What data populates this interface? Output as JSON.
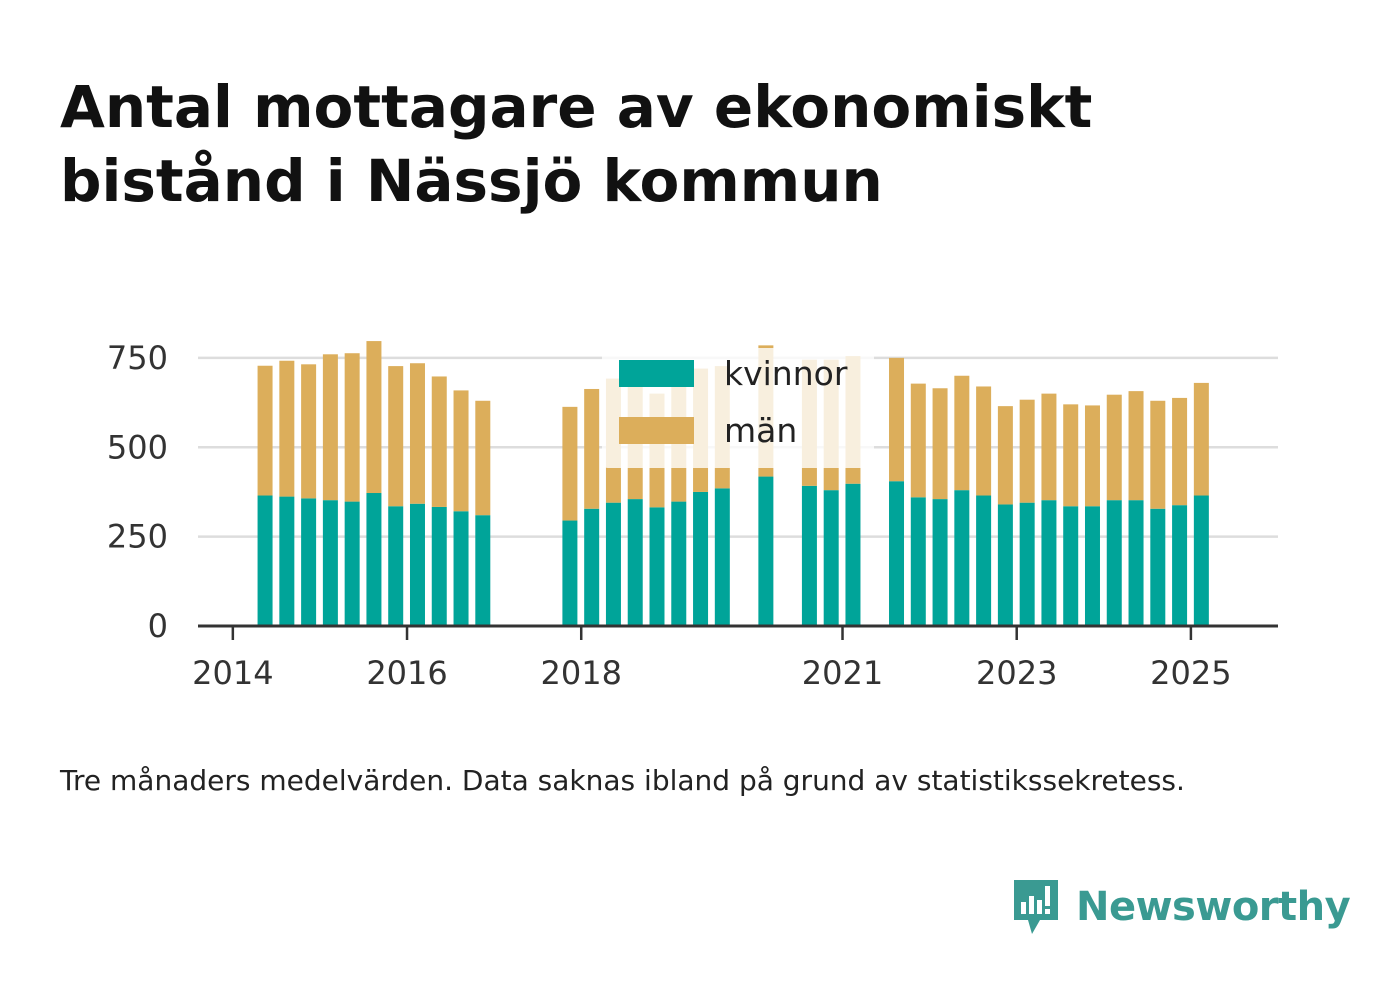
{
  "title": "Antal mottagare av ekonomiskt bistånd i Nässjö kommun",
  "note": "Tre månaders medelvärden. Data saknas ibland på grund av statistikssekretess.",
  "brand": "Newsworthy",
  "colors": {
    "kvinnor": "#00a499",
    "man": "#dcae5b",
    "grid": "#dddddd",
    "axis": "#333333"
  },
  "chart_data": {
    "type": "bar",
    "stacked": true,
    "yticks": [
      0,
      250,
      500,
      750
    ],
    "ylim": [
      0,
      800
    ],
    "xtick_labels": [
      "2014",
      "2016",
      "2018",
      "2021",
      "2023",
      "2025"
    ],
    "xtick_years": [
      2014,
      2016,
      2018,
      2021,
      2023,
      2025
    ],
    "xlim": [
      2013.6,
      2026.0
    ],
    "legend": {
      "position": "top-center",
      "entries": [
        "kvinnor",
        "män"
      ]
    },
    "grid": true,
    "x": [
      2014.37,
      2014.62,
      2014.87,
      2015.12,
      2015.37,
      2015.62,
      2015.87,
      2016.12,
      2016.37,
      2016.62,
      2016.87,
      2017.87,
      2018.12,
      2018.37,
      2018.62,
      2018.87,
      2019.12,
      2019.37,
      2019.62,
      2020.12,
      2020.62,
      2020.87,
      2021.12,
      2021.62,
      2021.87,
      2022.12,
      2022.37,
      2022.62,
      2022.87,
      2023.12,
      2023.37,
      2023.62,
      2023.87,
      2024.12,
      2024.37,
      2024.62,
      2024.87,
      2025.12
    ],
    "series": [
      {
        "name": "kvinnor",
        "values": [
          365,
          362,
          357,
          352,
          348,
          372,
          335,
          342,
          333,
          321,
          310,
          295,
          328,
          345,
          355,
          332,
          348,
          375,
          385,
          418,
          392,
          380,
          398,
          405,
          360,
          355,
          380,
          365,
          340,
          345,
          352,
          335,
          335,
          352,
          352,
          328,
          338,
          365
        ]
      },
      {
        "name": "män",
        "values": [
          363,
          380,
          375,
          408,
          415,
          425,
          392,
          393,
          365,
          338,
          320,
          318,
          335,
          347,
          345,
          318,
          323,
          345,
          342,
          367,
          353,
          365,
          357,
          345,
          318,
          310,
          320,
          305,
          275,
          288,
          298,
          285,
          282,
          295,
          305,
          302,
          300,
          315
        ]
      }
    ]
  }
}
